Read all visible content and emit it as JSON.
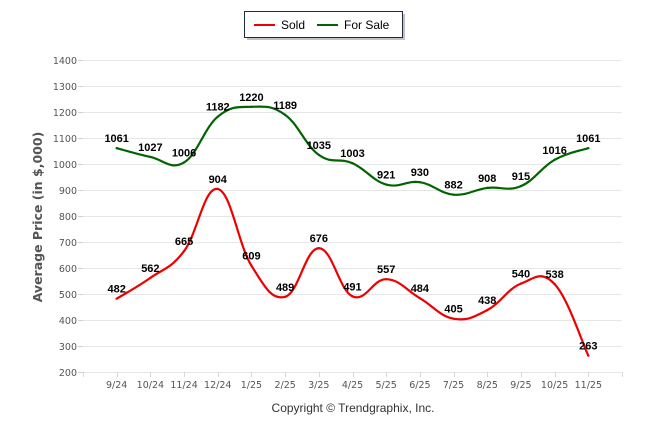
{
  "chart_data": {
    "type": "line",
    "title": "",
    "xlabel": "",
    "ylabel": "Average Price (in $,000)",
    "ylim": [
      200,
      1400
    ],
    "yticks": [
      200,
      300,
      400,
      500,
      600,
      700,
      800,
      900,
      1000,
      1100,
      1200,
      1300,
      1400
    ],
    "grid": true,
    "legend_position": "top-center",
    "categories": [
      "9/24",
      "10/24",
      "11/24",
      "12/24",
      "1/25",
      "2/25",
      "3/25",
      "4/25",
      "5/25",
      "6/25",
      "7/25",
      "8/25",
      "9/25",
      "10/25",
      "11/25"
    ],
    "series": [
      {
        "name": "Sold",
        "color": "#ee0000",
        "values": [
          482,
          562,
          665,
          904,
          609,
          489,
          676,
          491,
          557,
          484,
          405,
          438,
          540,
          538,
          263
        ]
      },
      {
        "name": "For Sale",
        "color": "#006400",
        "values": [
          1061,
          1027,
          1006,
          1182,
          1220,
          1189,
          1035,
          1003,
          921,
          930,
          882,
          908,
          915,
          1016,
          1061
        ]
      }
    ],
    "footer": "Copyright © Trendgraphix, Inc."
  }
}
